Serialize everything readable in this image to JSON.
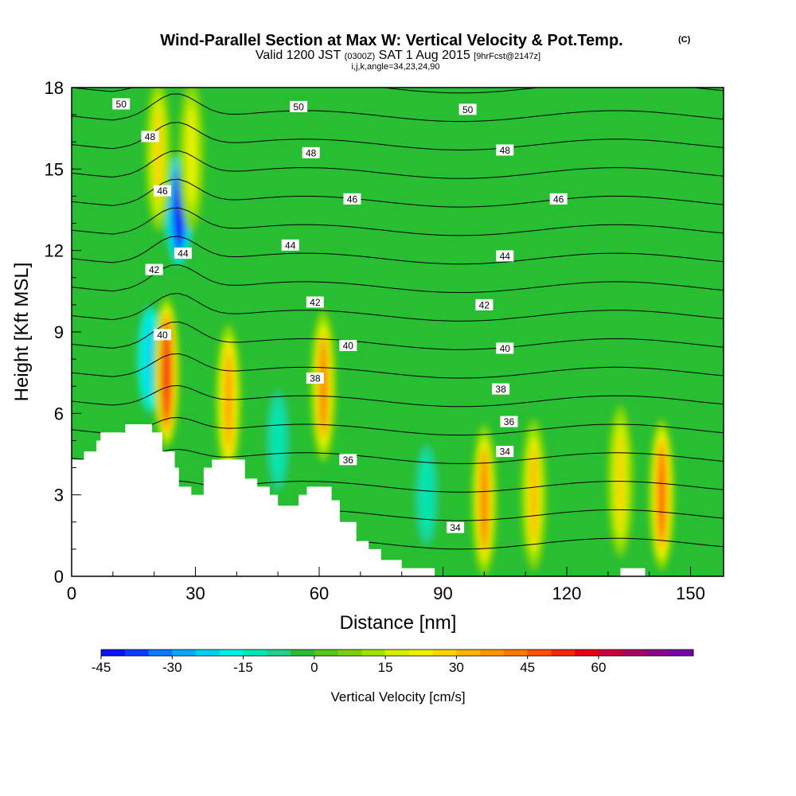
{
  "chart_data": {
    "type": "heatmap",
    "title": "Wind-Parallel Section at Max W: Vertical Velocity & Pot.Temp.",
    "title_mark": "(C)",
    "subtitle_lead": "Valid 1200 JST",
    "subtitle_zulu": "(0300Z)",
    "subtitle_date": "SAT 1 Aug 2015",
    "subtitle_fcst": "[9hrFcst@2147z]",
    "subtitle2": "i,j,k,angle=34,23,24,90",
    "xlabel": "Distance [nm]",
    "ylabel": "Height [Kft MSL]",
    "xlim": [
      0,
      158
    ],
    "ylim": [
      0,
      18
    ],
    "x_ticks": [
      0,
      30,
      60,
      90,
      120,
      150
    ],
    "y_ticks": [
      0,
      3,
      6,
      9,
      12,
      15,
      18
    ],
    "colorbar": {
      "label": "Vertical Velocity [cm/s]",
      "min": -45,
      "step": 5,
      "tick_values": [
        -45,
        -30,
        -15,
        0,
        15,
        30,
        45,
        60
      ],
      "colors": [
        "#0a14f0",
        "#0a3cff",
        "#0a78ff",
        "#05aaff",
        "#00d2f0",
        "#00f0e6",
        "#00e6b4",
        "#1ed28c",
        "#28be32",
        "#50c814",
        "#78d20a",
        "#a0e600",
        "#d2f000",
        "#f0f000",
        "#ffd200",
        "#ffb400",
        "#ff9600",
        "#ff7800",
        "#ff5000",
        "#f02800",
        "#e60014",
        "#c8003c",
        "#aa0064",
        "#8c008c",
        "#7800aa"
      ]
    },
    "updrafts": [
      {
        "x": 23,
        "y": 7.5,
        "w_cms": 55
      },
      {
        "x": 21,
        "y": 15.5,
        "w_cms": 25
      },
      {
        "x": 29,
        "y": 15.5,
        "w_cms": 20
      },
      {
        "x": 38,
        "y": 6.5,
        "w_cms": 35
      },
      {
        "x": 61,
        "y": 7,
        "w_cms": 40
      },
      {
        "x": 100,
        "y": 2.8,
        "w_cms": 40
      },
      {
        "x": 112,
        "y": 3,
        "w_cms": 32
      },
      {
        "x": 133,
        "y": 3.5,
        "w_cms": 25
      },
      {
        "x": 143,
        "y": 3,
        "w_cms": 45
      }
    ],
    "downdrafts": [
      {
        "x": 26,
        "y": 13.5,
        "w_cms": -45
      },
      {
        "x": 19,
        "y": 8,
        "w_cms": -25
      },
      {
        "x": 50,
        "y": 5,
        "w_cms": -15
      },
      {
        "x": 86,
        "y": 3,
        "w_cms": -15
      }
    ],
    "contour_levels": [
      34,
      35,
      36,
      37,
      38,
      39,
      40,
      41,
      42,
      43,
      44,
      45,
      46,
      47,
      48,
      49,
      50
    ],
    "contour_labels": [
      {
        "text": "50",
        "x": 12,
        "y": 17.4
      },
      {
        "text": "50",
        "x": 55,
        "y": 17.3
      },
      {
        "text": "50",
        "x": 96,
        "y": 17.2
      },
      {
        "text": "48",
        "x": 19,
        "y": 16.2
      },
      {
        "text": "48",
        "x": 58,
        "y": 15.6
      },
      {
        "text": "48",
        "x": 105,
        "y": 15.7
      },
      {
        "text": "46",
        "x": 22,
        "y": 14.2
      },
      {
        "text": "46",
        "x": 68,
        "y": 13.9
      },
      {
        "text": "46",
        "x": 118,
        "y": 13.9
      },
      {
        "text": "44",
        "x": 27,
        "y": 11.9
      },
      {
        "text": "44",
        "x": 53,
        "y": 12.2
      },
      {
        "text": "44",
        "x": 105,
        "y": 11.8
      },
      {
        "text": "42",
        "x": 20,
        "y": 11.3
      },
      {
        "text": "42",
        "x": 59,
        "y": 10.1
      },
      {
        "text": "42",
        "x": 100,
        "y": 10
      },
      {
        "text": "40",
        "x": 22,
        "y": 8.9
      },
      {
        "text": "40",
        "x": 67,
        "y": 8.5
      },
      {
        "text": "40",
        "x": 105,
        "y": 8.4
      },
      {
        "text": "38",
        "x": 59,
        "y": 7.3
      },
      {
        "text": "38",
        "x": 104,
        "y": 6.9
      },
      {
        "text": "36",
        "x": 67,
        "y": 4.3
      },
      {
        "text": "36",
        "x": 106,
        "y": 5.7
      },
      {
        "text": "34",
        "x": 93,
        "y": 1.8
      },
      {
        "text": "34",
        "x": 105,
        "y": 4.6
      }
    ],
    "terrain_kft": [
      [
        0,
        4.3
      ],
      [
        3,
        4.3
      ],
      [
        3,
        4.6
      ],
      [
        6,
        4.6
      ],
      [
        6,
        5
      ],
      [
        7,
        5
      ],
      [
        7,
        5.3
      ],
      [
        13,
        5.3
      ],
      [
        13,
        5.6
      ],
      [
        19.5,
        5.6
      ],
      [
        19.5,
        5.3
      ],
      [
        22,
        5.3
      ],
      [
        22,
        4.6
      ],
      [
        25,
        4.6
      ],
      [
        25,
        4
      ],
      [
        26,
        4
      ],
      [
        26,
        3.3
      ],
      [
        29,
        3.3
      ],
      [
        29,
        3
      ],
      [
        32,
        3
      ],
      [
        32,
        4
      ],
      [
        34,
        4
      ],
      [
        34,
        4.3
      ],
      [
        42,
        4.3
      ],
      [
        42,
        3.6
      ],
      [
        45,
        3.6
      ],
      [
        45,
        3.3
      ],
      [
        48,
        3.3
      ],
      [
        48,
        3
      ],
      [
        50,
        3
      ],
      [
        50,
        2.6
      ],
      [
        55,
        2.6
      ],
      [
        55,
        3
      ],
      [
        57,
        3
      ],
      [
        57,
        3.3
      ],
      [
        63,
        3.3
      ],
      [
        63,
        2.8
      ],
      [
        65,
        2.8
      ],
      [
        65,
        2
      ],
      [
        69,
        2
      ],
      [
        69,
        1.3
      ],
      [
        72,
        1.3
      ],
      [
        72,
        1
      ],
      [
        75,
        1
      ],
      [
        75,
        0.6
      ],
      [
        80,
        0.6
      ],
      [
        80,
        0.3
      ],
      [
        88,
        0.3
      ],
      [
        88,
        0
      ],
      [
        133,
        0
      ],
      [
        133,
        0.3
      ],
      [
        139,
        0.3
      ],
      [
        139,
        0
      ],
      [
        158,
        0
      ]
    ]
  }
}
